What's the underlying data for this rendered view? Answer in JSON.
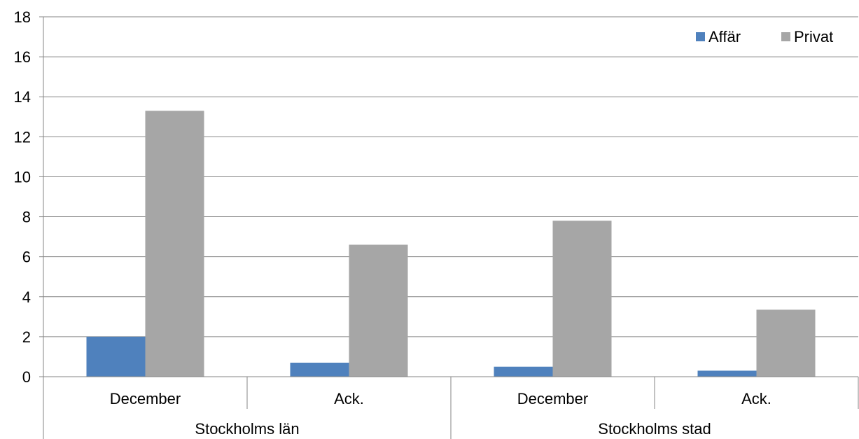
{
  "chart_data": {
    "type": "bar",
    "groups": [
      "Stockholms län",
      "Stockholms stad"
    ],
    "subcategories": [
      "December",
      "Ack.",
      "December",
      "Ack."
    ],
    "categories": [
      "Stockholms län – December",
      "Stockholms län – Ack.",
      "Stockholms stad – December",
      "Stockholms stad – Ack."
    ],
    "series": [
      {
        "name": "Affär",
        "color": "#4f81bd",
        "values": [
          2.0,
          0.7,
          0.5,
          0.3
        ]
      },
      {
        "name": "Privat",
        "color": "#a6a6a6",
        "values": [
          13.3,
          6.6,
          7.8,
          3.35
        ]
      }
    ],
    "ylim": [
      0,
      18
    ],
    "yticks": [
      "0",
      "2",
      "4",
      "6",
      "8",
      "10",
      "12",
      "14",
      "16",
      "18"
    ],
    "title": "",
    "xlabel": "",
    "ylabel": "",
    "grid": true,
    "legend_position": "top-right"
  }
}
